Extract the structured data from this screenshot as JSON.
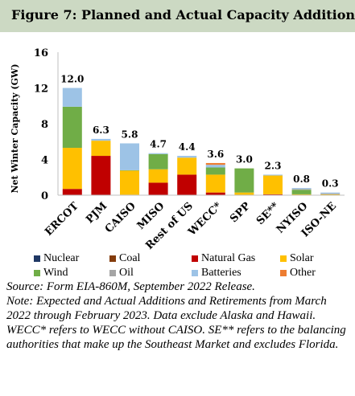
{
  "title": "Figure 7: Planned and Actual Capacity Additions",
  "colors": {
    "title_bar": "#ccd9c3",
    "Nuclear": "#1f3864",
    "Coal": "#843c0c",
    "Natural Gas": "#c00000",
    "Solar": "#ffc000",
    "Wind": "#70ad47",
    "Oil": "#a5a5a5",
    "Batteries": "#9dc3e6",
    "Other": "#ed7d31"
  },
  "chart_data": {
    "type": "bar",
    "stacked": true,
    "categories": [
      "ERCOT",
      "PJM",
      "CAISO",
      "MISO",
      "Rest of US",
      "WECC*",
      "SPP",
      "SE**",
      "NYISO",
      "ISO-NE"
    ],
    "totals": [
      "12.0",
      "6.3",
      "5.8",
      "4.7",
      "4.4",
      "3.6",
      "3.0",
      "2.3",
      "0.8",
      "0.3"
    ],
    "ylabel": "Net Winter Capacity (GW)",
    "ylim": [
      0,
      16
    ],
    "yticks": [
      "0",
      "4",
      "8",
      "12",
      "16"
    ],
    "grid": false,
    "series": [
      {
        "name": "Nuclear",
        "values": [
          0,
          0,
          0,
          0,
          0,
          0,
          0,
          0,
          0,
          0
        ]
      },
      {
        "name": "Coal",
        "values": [
          0,
          0,
          0,
          0,
          0,
          0,
          0,
          0,
          0,
          0
        ]
      },
      {
        "name": "Natural Gas",
        "values": [
          0.7,
          4.4,
          0.05,
          1.4,
          2.3,
          0.3,
          0,
          0.1,
          0,
          0
        ]
      },
      {
        "name": "Solar",
        "values": [
          4.6,
          1.7,
          2.7,
          1.5,
          1.9,
          2.0,
          0.3,
          2.1,
          0.1,
          0.1
        ]
      },
      {
        "name": "Wind",
        "values": [
          4.6,
          0,
          0.05,
          1.7,
          0,
          0.8,
          2.7,
          0,
          0.5,
          0
        ]
      },
      {
        "name": "Oil",
        "values": [
          0,
          0,
          0,
          0,
          0,
          0,
          0,
          0,
          0.1,
          0.1
        ]
      },
      {
        "name": "Batteries",
        "values": [
          2.1,
          0.2,
          3.0,
          0.1,
          0.2,
          0.3,
          0,
          0.1,
          0.1,
          0.1
        ]
      },
      {
        "name": "Other",
        "values": [
          0,
          0,
          0,
          0,
          0,
          0.2,
          0,
          0,
          0,
          0
        ]
      }
    ],
    "legend": [
      "Nuclear",
      "Coal",
      "Natural Gas",
      "Solar",
      "Wind",
      "Oil",
      "Batteries",
      "Other"
    ],
    "legend_placement": "bottom"
  },
  "notes": {
    "source": "Source: Form EIA-860M, September 2022 Release.",
    "note": "Note: Expected and Actual Additions and Retirements from March 2022 through February 2023.  Data exclude Alaska and Hawaii.  WECC* refers to WECC without CAISO.  SE** refers to the balancing authorities that make up the Southeast Market and excludes Florida."
  }
}
